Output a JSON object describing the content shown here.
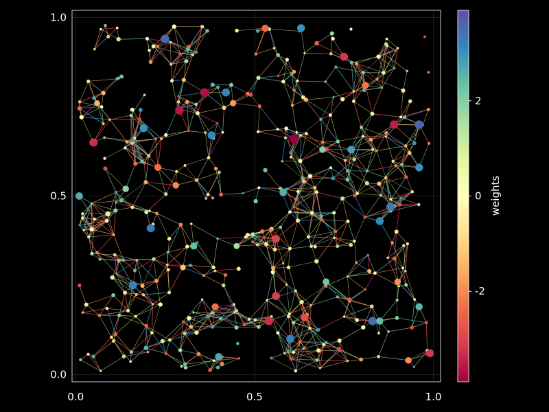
{
  "chart_data": {
    "type": "scatter",
    "subtype": "network-graph",
    "title": "",
    "xlabel": "",
    "ylabel": "",
    "xlim": [
      -0.01,
      1.02
    ],
    "ylim": [
      -0.02,
      1.02
    ],
    "xticks": [
      0.0,
      0.5,
      1.0
    ],
    "xtick_labels": [
      "0.0",
      "0.5",
      "1.0"
    ],
    "yticks": [
      0.0,
      0.5,
      1.0
    ],
    "ytick_labels": [
      "0.0",
      "0.5",
      "1.0"
    ],
    "grid": true,
    "background": "#000000",
    "foreground": "#ffffff",
    "colorbar": {
      "label": "weights",
      "range": [
        -3.9,
        3.9
      ],
      "ticks": [
        -2,
        0,
        2
      ],
      "tick_labels": [
        "-2",
        "0",
        "2"
      ],
      "colormap": [
        "#9e0142",
        "#d53e4f",
        "#f46d43",
        "#fdae61",
        "#fee08b",
        "#ffffbf",
        "#e6f598",
        "#abdda4",
        "#66c2a5",
        "#3288bd",
        "#5e4fa2"
      ]
    },
    "nodes": [
      {
        "x": 0.01,
        "y": 0.5,
        "w": 2.6
      },
      {
        "x": 0.05,
        "y": 0.65,
        "w": -3.3
      },
      {
        "x": 0.06,
        "y": 0.76,
        "w": -1.4
      },
      {
        "x": 0.09,
        "y": 0.45,
        "w": 0.8
      },
      {
        "x": 0.14,
        "y": 0.52,
        "w": 1.9
      },
      {
        "x": 0.16,
        "y": 0.25,
        "w": 3.2
      },
      {
        "x": 0.19,
        "y": 0.69,
        "w": 3.0
      },
      {
        "x": 0.21,
        "y": 0.41,
        "w": 3.3
      },
      {
        "x": 0.23,
        "y": 0.58,
        "w": -2.4
      },
      {
        "x": 0.25,
        "y": 0.94,
        "w": 3.6
      },
      {
        "x": 0.28,
        "y": 0.53,
        "w": -2.0
      },
      {
        "x": 0.29,
        "y": 0.74,
        "w": -3.6
      },
      {
        "x": 0.33,
        "y": 0.36,
        "w": 2.4
      },
      {
        "x": 0.36,
        "y": 0.79,
        "w": -3.7
      },
      {
        "x": 0.38,
        "y": 0.67,
        "w": 3.1
      },
      {
        "x": 0.39,
        "y": 0.19,
        "w": -2.3
      },
      {
        "x": 0.4,
        "y": 0.05,
        "w": 2.7
      },
      {
        "x": 0.42,
        "y": 0.79,
        "w": 3.2
      },
      {
        "x": 0.44,
        "y": 0.76,
        "w": -1.8
      },
      {
        "x": 0.53,
        "y": 0.97,
        "w": -2.4
      },
      {
        "x": 0.54,
        "y": 0.15,
        "w": -3.3
      },
      {
        "x": 0.56,
        "y": 0.38,
        "w": -3.0
      },
      {
        "x": 0.56,
        "y": 0.22,
        "w": -3.1
      },
      {
        "x": 0.58,
        "y": 0.51,
        "w": 2.6
      },
      {
        "x": 0.6,
        "y": 0.1,
        "w": 3.3
      },
      {
        "x": 0.61,
        "y": 0.66,
        "w": -3.9
      },
      {
        "x": 0.63,
        "y": 0.97,
        "w": 3.0
      },
      {
        "x": 0.64,
        "y": 0.16,
        "w": -2.8
      },
      {
        "x": 0.69,
        "y": 0.63,
        "w": 2.0
      },
      {
        "x": 0.7,
        "y": 0.26,
        "w": 2.2
      },
      {
        "x": 0.75,
        "y": 0.89,
        "w": -3.2
      },
      {
        "x": 0.77,
        "y": 0.63,
        "w": 2.8
      },
      {
        "x": 0.81,
        "y": 0.81,
        "w": -2.2
      },
      {
        "x": 0.83,
        "y": 0.15,
        "w": 3.5
      },
      {
        "x": 0.85,
        "y": 0.43,
        "w": 3.1
      },
      {
        "x": 0.88,
        "y": 0.47,
        "w": 3.3
      },
      {
        "x": 0.89,
        "y": 0.7,
        "w": -3.5
      },
      {
        "x": 0.9,
        "y": 0.26,
        "w": -1.9
      },
      {
        "x": 0.96,
        "y": 0.7,
        "w": 3.6
      },
      {
        "x": 0.96,
        "y": 0.58,
        "w": 3.0
      },
      {
        "x": 0.96,
        "y": 0.19,
        "w": 2.5
      },
      {
        "x": 0.99,
        "y": 0.06,
        "w": -3.2
      },
      {
        "x": 0.93,
        "y": 0.04,
        "w": -2.0
      },
      {
        "x": 0.85,
        "y": 0.15,
        "w": 2.4
      },
      {
        "x": 0.45,
        "y": 0.36,
        "w": 1.6
      },
      {
        "x": 0.3,
        "y": 0.3,
        "w": -1.2
      }
    ],
    "edges_note": "dense random geometric network; several thousand thin edges colored by weight"
  }
}
